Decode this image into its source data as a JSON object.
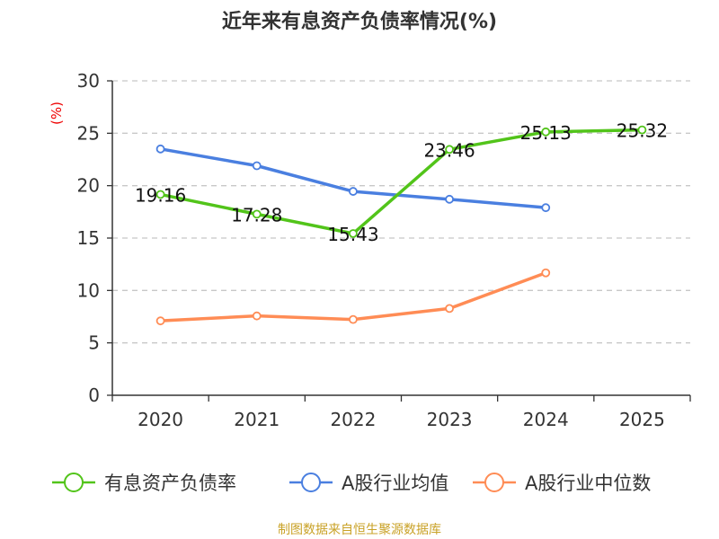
{
  "chart_data": {
    "type": "line",
    "title": "近年来有息资产负债率情况(%)",
    "ylabel": "(%)",
    "xlabel": "",
    "categories": [
      "2020",
      "2021",
      "2022",
      "2023",
      "2024",
      "2025"
    ],
    "ylim": [
      0,
      30
    ],
    "yticks": [
      0,
      5,
      10,
      15,
      20,
      25,
      30
    ],
    "grid": true,
    "legend_position": "bottom",
    "series": [
      {
        "name": "有息资产负债率",
        "color": "#52c41a",
        "values": [
          19.16,
          17.28,
          15.43,
          23.46,
          25.13,
          25.32
        ],
        "labels": [
          "19.16",
          "17.28",
          "15.43",
          "23.46",
          "25.13",
          "25.32"
        ]
      },
      {
        "name": "A股行业均值",
        "color": "#4a7fe0",
        "values": [
          23.5,
          21.9,
          19.45,
          18.7,
          17.9,
          null
        ]
      },
      {
        "name": "A股行业中位数",
        "color": "#ff8c55",
        "values": [
          7.1,
          7.57,
          7.23,
          8.28,
          11.68,
          null
        ]
      }
    ]
  },
  "source": "制图数据来自恒生聚源数据库"
}
